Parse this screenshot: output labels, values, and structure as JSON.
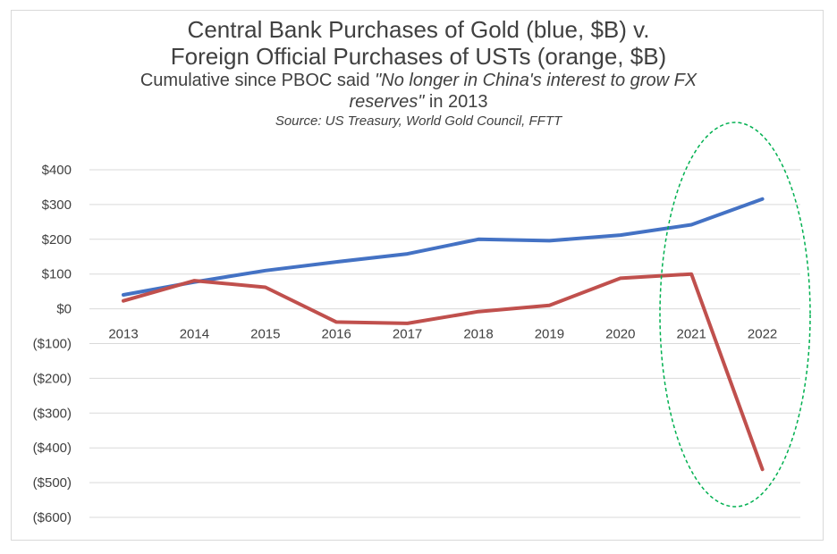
{
  "chart_data": {
    "type": "line",
    "title": "Central Bank Purchases of Gold (blue, $B) v.",
    "title_line2": "Foreign Official Purchases of USTs (orange, $B)",
    "subtitle_prefix": "Cumulative since PBOC said ",
    "subtitle_quote_1": "\"No longer in China's interest to grow FX",
    "subtitle_quote_2": "reserves\"",
    "subtitle_suffix": " in 2013",
    "source": "Source: US Treasury, World Gold Council, FFTT",
    "xlabel": "",
    "ylabel": "",
    "categories": [
      "2013",
      "2014",
      "2015",
      "2016",
      "2017",
      "2018",
      "2019",
      "2020",
      "2021",
      "2022"
    ],
    "ylim": [
      -600,
      400
    ],
    "yticks": [
      400,
      300,
      200,
      100,
      0,
      -100,
      -200,
      -300,
      -400,
      -500,
      -600
    ],
    "ytick_labels": [
      "$400",
      "$300",
      "$200",
      "$100",
      "$0",
      "($100)",
      "($200)",
      "($300)",
      "($400)",
      "($500)",
      "($600)"
    ],
    "grid": true,
    "series": [
      {
        "color": "#4472c4",
        "values": [
          40,
          77,
          110,
          135,
          158,
          200,
          196,
          212,
          242,
          316
        ]
      },
      {
        "color": "#c0504d",
        "values": [
          23,
          81,
          62,
          -38,
          -42,
          -8,
          10,
          88,
          100,
          -462
        ]
      }
    ],
    "annotation": {
      "shape": "ellipse",
      "color": "#00b050",
      "style": "dashed",
      "covers": [
        "2021",
        "2022"
      ]
    }
  }
}
